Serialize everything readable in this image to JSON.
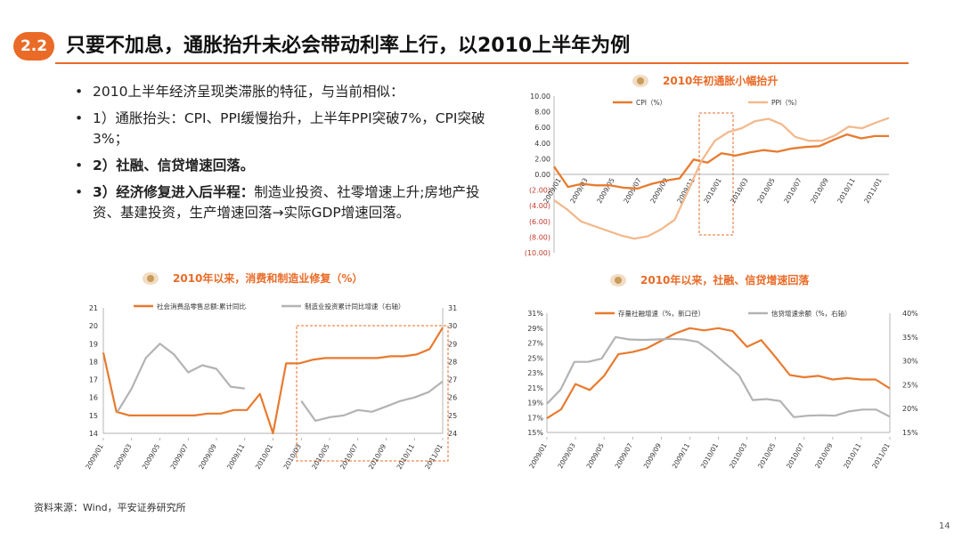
{
  "header": {
    "badge": "2.2",
    "title": "只要不加息，通胀抬升未必会带动利率上行，以2010上半年为例"
  },
  "bullets": [
    {
      "text": "2010上半年经济呈现类滞胀的特征，与当前相似："
    },
    {
      "text": "1）通胀抬头：CPI、PPI缓慢抬升，上半年PPI突破7%，CPI突破3%；"
    },
    {
      "strong": "2）社融、信贷增速回落。",
      "text": ""
    },
    {
      "strong": "3）经济修复进入后半程：",
      "text": "制造业投资、社零增速上升;房地产投资、基建投资，生产增速回落→实际GDP增速回落。"
    }
  ],
  "footer": {
    "source": "资料来源：Wind，平安证券研究所",
    "page": "14"
  },
  "colors": {
    "accent": "#E96B27",
    "orange": "#E87A2E",
    "peach": "#F3B98D",
    "gray": "#B3B3B3",
    "highlight_box": "#E96B27"
  },
  "chart_data": [
    {
      "id": "inflation",
      "type": "line",
      "title": "2010年初通胀小幅抬升",
      "x_labels": [
        "2009/01",
        "2009/03",
        "2009/05",
        "2009/07",
        "2009/09",
        "2009/11",
        "2010/01",
        "2010/03",
        "2010/05",
        "2010/07",
        "2010/09",
        "2010/11",
        "2011/01"
      ],
      "y_ticks": [
        "10.00",
        "8.00",
        "6.00",
        "4.00",
        "2.00",
        "0.00",
        "(2.00)",
        "(4.00)",
        "(6.00)",
        "(8.00)",
        "(10.00)"
      ],
      "ylim": [
        -10,
        10
      ],
      "series": [
        {
          "name": "CPI（%）",
          "values": [
            1.0,
            -1.6,
            -1.2,
            -1.4,
            -1.4,
            -1.7,
            -1.8,
            -1.2,
            -0.8,
            -0.5,
            1.9,
            1.5,
            2.7,
            2.4,
            2.8,
            3.1,
            2.9,
            3.3,
            3.5,
            3.6,
            4.4,
            5.1,
            4.6,
            4.9,
            4.9
          ]
        },
        {
          "name": "PPI（%）",
          "values": [
            -3.3,
            -4.5,
            -6.0,
            -6.6,
            -7.2,
            -7.8,
            -8.2,
            -7.9,
            -7.0,
            -5.8,
            -2.1,
            1.7,
            4.3,
            5.4,
            5.9,
            6.8,
            7.1,
            6.4,
            4.8,
            4.3,
            4.3,
            5.0,
            6.1,
            5.9,
            6.6,
            7.2
          ]
        }
      ],
      "highlight": "2009/12–2010/03"
    },
    {
      "id": "consumption",
      "type": "line",
      "title": "2010年以来，消费和制造业修复（%）",
      "x_labels": [
        "2009/01",
        "2009/03",
        "2009/05",
        "2009/07",
        "2009/09",
        "2009/11",
        "2010/01",
        "2010/03",
        "2010/05",
        "2010/07",
        "2010/09",
        "2010/11",
        "2011/01"
      ],
      "y_left_ticks": [
        "21",
        "20",
        "19",
        "18",
        "17",
        "16",
        "15",
        "14"
      ],
      "y_right_ticks": [
        "31",
        "30",
        "29",
        "28",
        "27",
        "26",
        "25",
        "24"
      ],
      "ylim_left": [
        14,
        21
      ],
      "ylim_right": [
        24,
        31
      ],
      "series": [
        {
          "name": "社会消费品零售总额:累计同比",
          "axis": "left",
          "values": [
            18.5,
            15.2,
            15.0,
            15.0,
            15.0,
            15.0,
            15.0,
            15.0,
            15.1,
            15.1,
            15.3,
            15.3,
            16.2,
            14.0,
            17.9,
            17.9,
            18.1,
            18.2,
            18.2,
            18.2,
            18.2,
            18.2,
            18.3,
            18.3,
            18.4,
            18.7,
            19.9
          ]
        },
        {
          "name": "制造业投资累计同比增速（右轴）",
          "axis": "right",
          "values": [
            null,
            25.2,
            26.5,
            28.2,
            29.0,
            28.4,
            27.4,
            27.8,
            27.6,
            26.6,
            26.5,
            null,
            null,
            null,
            25.8,
            24.7,
            24.9,
            25.0,
            25.3,
            25.2,
            25.5,
            25.8,
            26.0,
            26.3,
            26.9
          ]
        },
        {
          "name": "",
          "axis": "right",
          "values": []
        }
      ],
      "highlight": "2010/02–2011/01"
    },
    {
      "id": "credit",
      "type": "line",
      "title": "2010年以来，社融、信贷增速回落",
      "x_labels": [
        "2009/01",
        "2009/03",
        "2009/05",
        "2009/07",
        "2009/09",
        "2009/11",
        "2010/01",
        "2010/03",
        "2010/05",
        "2010/07",
        "2010/09",
        "2010/11",
        "2011/01"
      ],
      "y_left_ticks": [
        "31%",
        "29%",
        "27%",
        "25%",
        "23%",
        "21%",
        "19%",
        "17%",
        "15%"
      ],
      "y_right_ticks": [
        "40%",
        "35%",
        "30%",
        "25%",
        "20%",
        "15%"
      ],
      "ylim_left": [
        15,
        31
      ],
      "ylim_right": [
        15,
        40
      ],
      "series": [
        {
          "name": "存量社融增速（%，新口径）",
          "axis": "left",
          "values": [
            16.9,
            18.1,
            21.5,
            20.7,
            22.6,
            25.5,
            25.8,
            26.3,
            27.3,
            28.3,
            29.0,
            28.7,
            29.0,
            28.6,
            26.5,
            27.4,
            25.1,
            22.7,
            22.4,
            22.6,
            22.1,
            22.3,
            22.1,
            22.1,
            20.9
          ]
        },
        {
          "name": "信贷增速余额（%，右轴）",
          "axis": "right",
          "values": [
            21.0,
            24.0,
            29.8,
            29.8,
            30.5,
            35.0,
            34.5,
            34.4,
            34.5,
            34.6,
            34.5,
            34.0,
            32.0,
            29.5,
            27.0,
            21.8,
            22.0,
            21.6,
            18.2,
            18.5,
            18.6,
            18.5,
            19.4,
            19.8,
            19.8,
            18.3
          ]
        }
      ],
      "highlight": ""
    }
  ]
}
